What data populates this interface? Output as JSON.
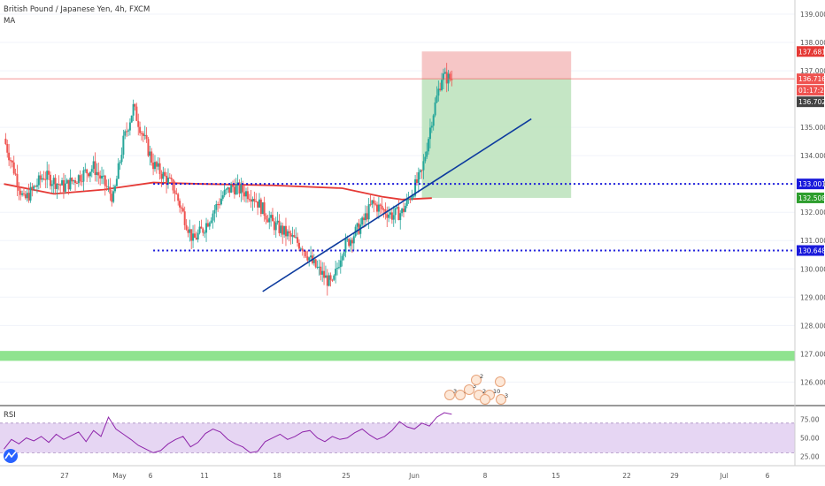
{
  "header": {
    "symbol_line": "British Pound / Japanese Yen, 4h, FXCM",
    "indicator": "MA",
    "rsi_label": "RSI"
  },
  "colors": {
    "bull": "#26a69a",
    "bear": "#ef5350",
    "ma": "#e53935",
    "trendline": "#0d3b9e",
    "level_line": "#1a1adb",
    "stop_zone": "#f5bcbc",
    "target_zone": "#bfe3bf",
    "support_band": "#8fe38f",
    "rsi_line": "#8e24aa",
    "rsi_band": "#e6d6f3"
  },
  "price_axis": {
    "ticks": [
      "139.000",
      "138.000",
      "137.000",
      "135.000",
      "134.000",
      "133.000",
      "132.000",
      "131.000",
      "130.000",
      "129.000",
      "128.000",
      "127.000",
      "126.000"
    ],
    "tags": [
      {
        "value": "137.681",
        "color": "#e53935"
      },
      {
        "value": "136.716",
        "color": "#ef5350"
      },
      {
        "value": "01:17:23",
        "color": "#ef5350"
      },
      {
        "value": "136.702",
        "color": "#444444"
      },
      {
        "value": "133.001",
        "color": "#1a1adb"
      },
      {
        "value": "132.508",
        "color": "#2e9e2e"
      },
      {
        "value": "130.648",
        "color": "#1a1adb"
      }
    ]
  },
  "rsi_axis": {
    "ticks": [
      "75.00",
      "50.00",
      "25.00"
    ]
  },
  "time_axis": {
    "ticks": [
      "27",
      "May",
      "6",
      "11",
      "18",
      "25",
      "Jun",
      "8",
      "15",
      "22",
      "29",
      "Jul",
      "6"
    ]
  },
  "events": [
    {
      "label": "3"
    },
    {
      "label": "3"
    },
    {
      "label": "3"
    },
    {
      "label": "2"
    },
    {
      "label": "2"
    },
    {
      "label": "10"
    },
    {
      "label": "3"
    },
    {
      "label": ""
    },
    {
      "label": ""
    }
  ],
  "chart_data": {
    "type": "candlestick",
    "title": "British Pound / Japanese Yen, 4h, FXCM",
    "x_range": [
      "Apr 22",
      "Jul 8"
    ],
    "ylim": [
      125.2,
      139.5
    ],
    "levels": [
      133.001,
      130.648,
      136.716
    ],
    "trendline": {
      "from": {
        "date": "May 18",
        "price": 129.2
      },
      "to": {
        "date": "Jun 14",
        "price": 135.3
      }
    },
    "position": {
      "type": "short",
      "entry": 136.716,
      "stop": 137.681,
      "target": 132.508,
      "date_from": "Jun 3",
      "date_to": "Jun 18"
    },
    "support_band": [
      126.75,
      127.1
    ],
    "ma_series": [
      {
        "date": "Apr 22",
        "price": 133.0
      },
      {
        "date": "Apr 27",
        "price": 132.65
      },
      {
        "date": "May 2",
        "price": 132.8
      },
      {
        "date": "May 7",
        "price": 133.05
      },
      {
        "date": "May 12",
        "price": 133.0
      },
      {
        "date": "May 19",
        "price": 132.95
      },
      {
        "date": "May 26",
        "price": 132.85
      },
      {
        "date": "May 30",
        "price": 132.55
      },
      {
        "date": "Jun 1",
        "price": 132.45
      },
      {
        "date": "Jun 4",
        "price": 132.5
      }
    ],
    "close_path": [
      {
        "date": "Apr 22",
        "price": 134.6
      },
      {
        "date": "Apr 24",
        "price": 132.4
      },
      {
        "date": "Apr 26",
        "price": 133.3
      },
      {
        "date": "Apr 28",
        "price": 132.9
      },
      {
        "date": "May 1",
        "price": 133.6
      },
      {
        "date": "May 3",
        "price": 132.5
      },
      {
        "date": "May 4",
        "price": 134.5
      },
      {
        "date": "May 5",
        "price": 135.7
      },
      {
        "date": "May 7",
        "price": 133.7
      },
      {
        "date": "May 9",
        "price": 132.9
      },
      {
        "date": "May 11",
        "price": 131.0
      },
      {
        "date": "May 12",
        "price": 131.4
      },
      {
        "date": "May 14",
        "price": 132.6
      },
      {
        "date": "May 15",
        "price": 132.9
      },
      {
        "date": "May 17",
        "price": 132.6
      },
      {
        "date": "May 19",
        "price": 131.6
      },
      {
        "date": "May 22",
        "price": 130.8
      },
      {
        "date": "May 23",
        "price": 130.2
      },
      {
        "date": "May 25",
        "price": 129.4
      },
      {
        "date": "May 26",
        "price": 130.7
      },
      {
        "date": "May 28",
        "price": 131.6
      },
      {
        "date": "May 29",
        "price": 132.3
      },
      {
        "date": "May 31",
        "price": 131.9
      },
      {
        "date": "Jun 1",
        "price": 132.0
      },
      {
        "date": "Jun 2",
        "price": 132.7
      },
      {
        "date": "Jun 3",
        "price": 133.4
      },
      {
        "date": "Jun 4",
        "price": 135.3
      },
      {
        "date": "Jun 5",
        "price": 136.8
      },
      {
        "date": "Jun 6",
        "price": 136.7
      }
    ],
    "rsi": {
      "ylim": [
        15,
        90
      ],
      "band": [
        30,
        70
      ],
      "values": [
        35,
        48,
        42,
        50,
        46,
        52,
        44,
        55,
        48,
        53,
        58,
        45,
        60,
        52,
        78,
        62,
        55,
        48,
        40,
        35,
        30,
        33,
        42,
        48,
        52,
        38,
        44,
        56,
        62,
        58,
        48,
        42,
        38,
        30,
        32,
        45,
        50,
        55,
        48,
        52,
        58,
        60,
        50,
        45,
        52,
        48,
        50,
        57,
        62,
        54,
        48,
        52,
        60,
        72,
        65,
        62,
        70,
        66,
        78,
        84,
        82
      ]
    }
  }
}
